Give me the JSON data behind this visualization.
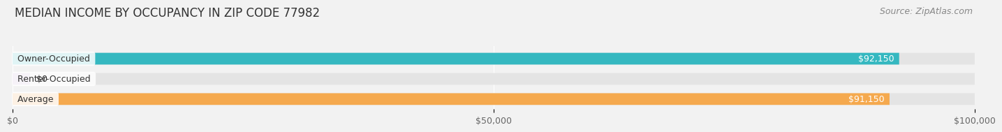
{
  "title": "MEDIAN INCOME BY OCCUPANCY IN ZIP CODE 77982",
  "source": "Source: ZipAtlas.com",
  "categories": [
    "Owner-Occupied",
    "Renter-Occupied",
    "Average"
  ],
  "values": [
    92150,
    0,
    91150
  ],
  "bar_colors": [
    "#35b8c0",
    "#c9aed4",
    "#f5a94e"
  ],
  "bar_labels": [
    "$92,150",
    "$0",
    "$91,150"
  ],
  "xlim": [
    0,
    100000
  ],
  "xticks": [
    0,
    50000,
    100000
  ],
  "xticklabels": [
    "$0",
    "$50,000",
    "$100,000"
  ],
  "background_color": "#f2f2f2",
  "bar_bg_color": "#e4e4e4",
  "title_fontsize": 12,
  "source_fontsize": 9,
  "label_fontsize": 9,
  "value_fontsize": 9,
  "tick_fontsize": 9
}
